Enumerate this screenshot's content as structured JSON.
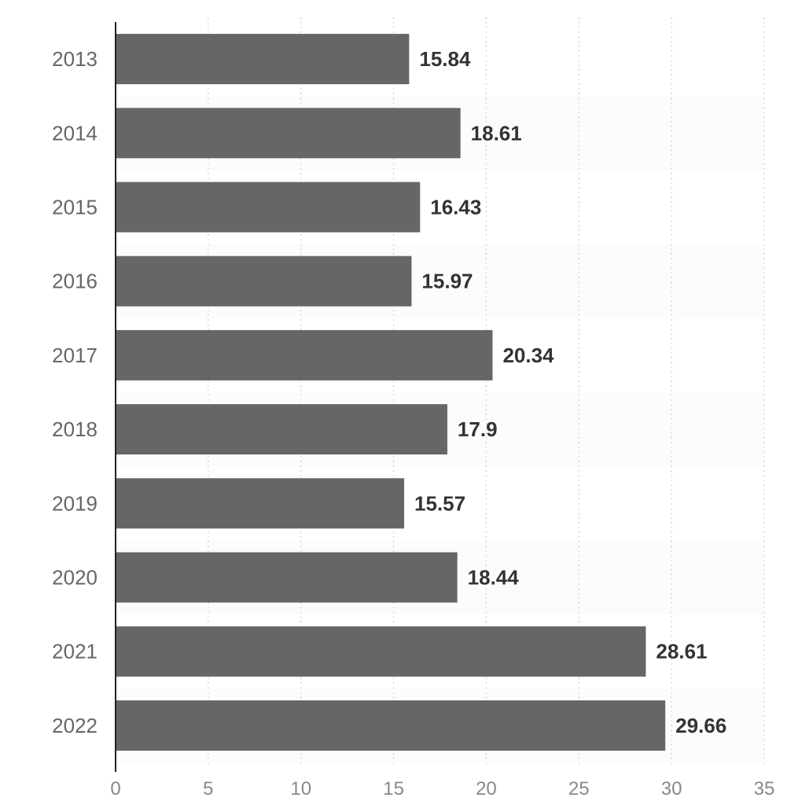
{
  "chart_data": {
    "type": "bar",
    "orientation": "horizontal",
    "categories": [
      "2013",
      "2014",
      "2015",
      "2016",
      "2017",
      "2018",
      "2019",
      "2020",
      "2021",
      "2022"
    ],
    "values": [
      15.84,
      18.61,
      16.43,
      15.97,
      20.34,
      17.9,
      15.57,
      18.44,
      28.61,
      29.66
    ],
    "value_labels": [
      "15.84",
      "18.61",
      "16.43",
      "15.97",
      "20.34",
      "17.9",
      "15.57",
      "18.44",
      "28.61",
      "29.66"
    ],
    "xlim": [
      0,
      35
    ],
    "x_ticks": [
      0,
      5,
      10,
      15,
      20,
      25,
      30,
      35
    ],
    "grid": true,
    "bar_color": "#666666",
    "band_color": "#fcfcfc"
  }
}
